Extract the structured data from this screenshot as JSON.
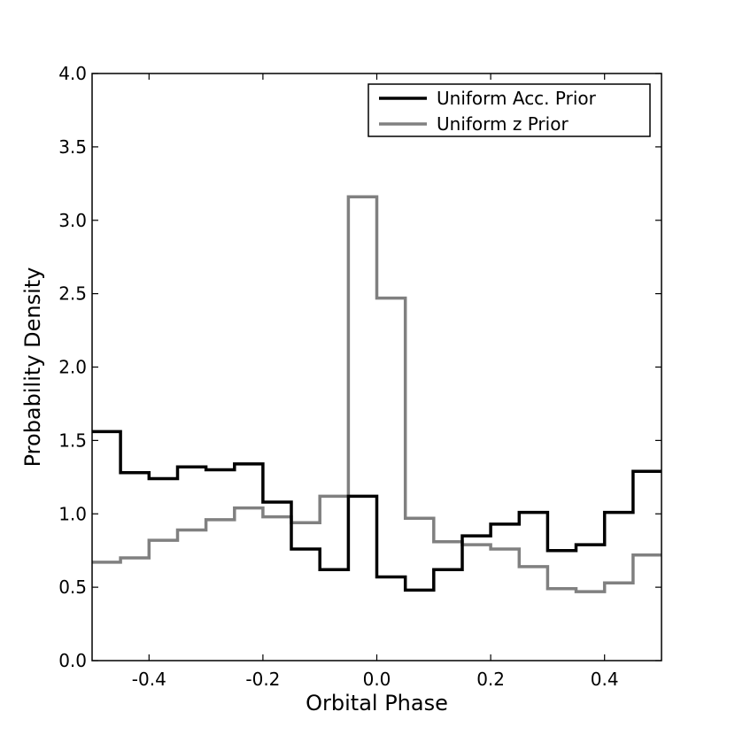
{
  "chart_data": {
    "type": "histogram-step",
    "xlabel": "Orbital Phase",
    "ylabel": "Probability Density",
    "xlim": [
      -0.5,
      0.5
    ],
    "ylim": [
      0.0,
      4.0
    ],
    "xticks": [
      -0.4,
      -0.2,
      0.0,
      0.2,
      0.4
    ],
    "xtick_labels": [
      "-0.4",
      "-0.2",
      "0.0",
      "0.2",
      "0.4"
    ],
    "yticks": [
      0.0,
      0.5,
      1.0,
      1.5,
      2.0,
      2.5,
      3.0,
      3.5,
      4.0
    ],
    "ytick_labels": [
      "0.0",
      "0.5",
      "1.0",
      "1.5",
      "2.0",
      "2.5",
      "3.0",
      "3.5",
      "4.0"
    ],
    "bin_edges": [
      -0.5,
      -0.45,
      -0.4,
      -0.35,
      -0.3,
      -0.25,
      -0.2,
      -0.15,
      -0.1,
      -0.05,
      0.0,
      0.05,
      0.1,
      0.15,
      0.2,
      0.25,
      0.3,
      0.35,
      0.4,
      0.45,
      0.5
    ],
    "legend_position": "top-right",
    "grid": false,
    "series": [
      {
        "name": "Uniform Acc. Prior",
        "color": "#000000",
        "values": [
          1.56,
          1.28,
          1.24,
          1.32,
          1.3,
          1.34,
          1.08,
          0.76,
          0.62,
          1.12,
          0.57,
          0.48,
          0.62,
          0.85,
          0.93,
          1.01,
          0.75,
          0.79,
          1.01,
          1.29
        ]
      },
      {
        "name": "Uniform z Prior",
        "color": "#808080",
        "values": [
          0.67,
          0.7,
          0.82,
          0.89,
          0.96,
          1.04,
          0.98,
          0.94,
          1.12,
          3.16,
          2.47,
          0.97,
          0.81,
          0.79,
          0.76,
          0.64,
          0.49,
          0.47,
          0.53,
          0.72
        ]
      }
    ]
  }
}
